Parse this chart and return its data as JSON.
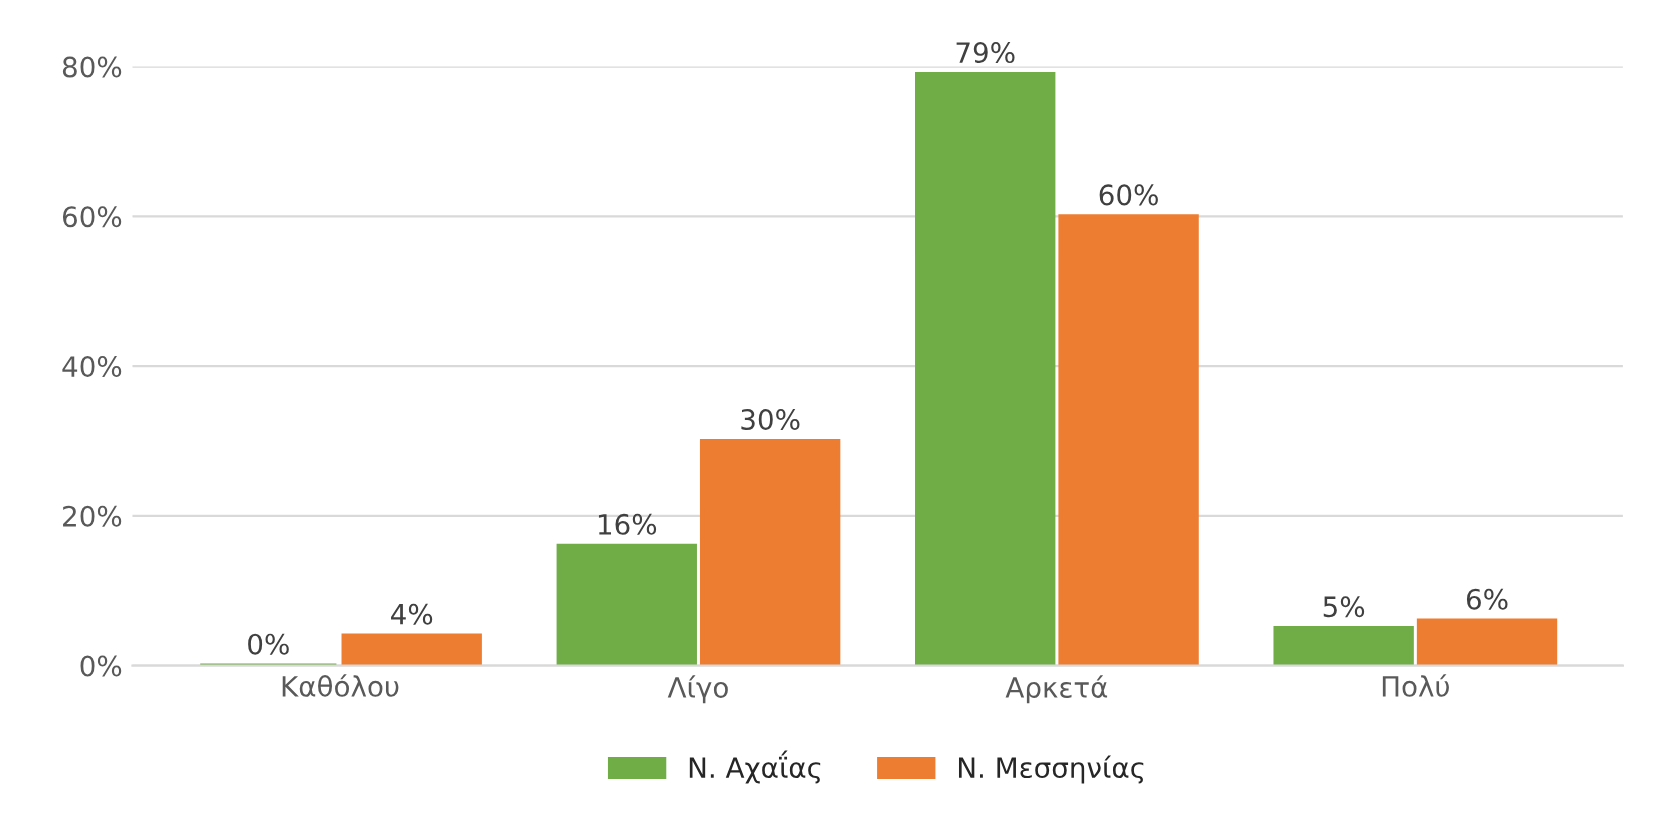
{
  "chart_data": {
    "type": "bar",
    "categories": [
      "Καθόλου",
      "Λίγο",
      "Αρκετά",
      "Πολύ"
    ],
    "series": [
      {
        "name": "Ν. Αχαΐας",
        "color": "#70ad47",
        "values": [
          0,
          16,
          79,
          5
        ],
        "value_labels": [
          "0%",
          "16%",
          "79%",
          "5%"
        ]
      },
      {
        "name": "Ν. Μεσσηνίας",
        "color": "#ed7d31",
        "values": [
          4,
          30,
          60,
          6
        ],
        "value_labels": [
          "4%",
          "30%",
          "60%",
          "6%"
        ]
      }
    ],
    "ylim": [
      0,
      80
    ],
    "yticks": [
      {
        "value": 0,
        "label": "0%"
      },
      {
        "value": 20,
        "label": "20%"
      },
      {
        "value": 40,
        "label": "40%"
      },
      {
        "value": 60,
        "label": "60%"
      },
      {
        "value": 80,
        "label": "80%"
      }
    ],
    "grid": "y",
    "legend": "bottom"
  }
}
